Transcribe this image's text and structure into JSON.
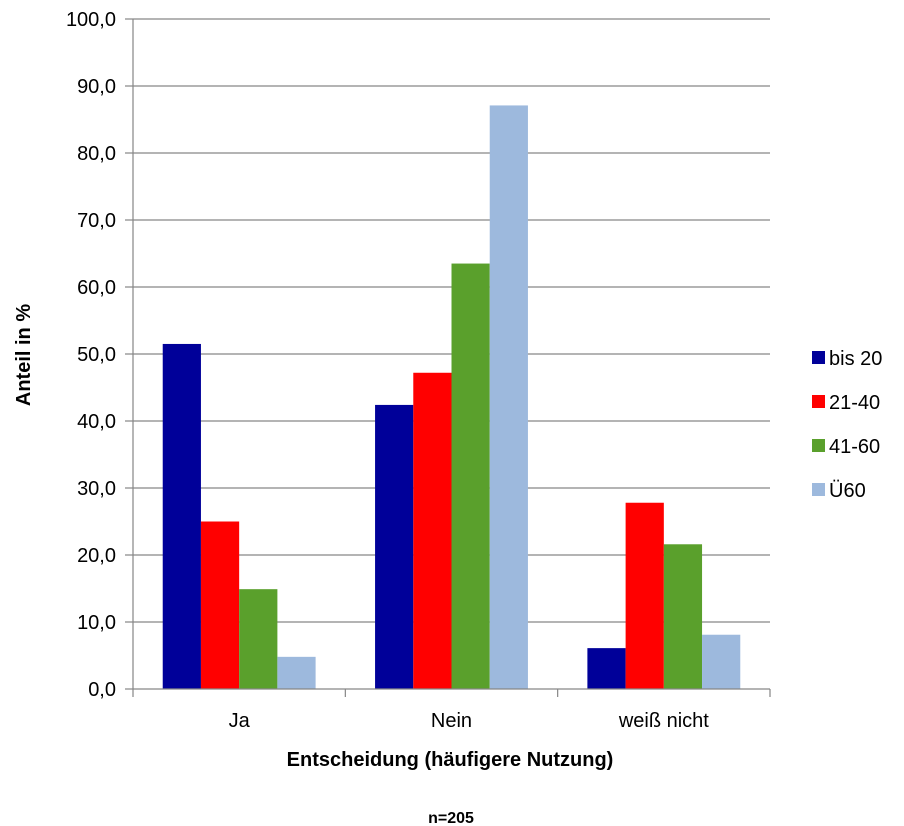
{
  "chart_data": {
    "type": "bar",
    "title": "",
    "xlabel": "Entscheidung (häufigere Nutzung)",
    "ylabel": "Anteil in %",
    "note": "n=205",
    "categories": [
      "Ja",
      "Nein",
      "weiß nicht"
    ],
    "ylim": [
      0,
      100
    ],
    "yticks": [
      "0,0",
      "10,0",
      "20,0",
      "30,0",
      "40,0",
      "50,0",
      "60,0",
      "70,0",
      "80,0",
      "90,0",
      "100,0"
    ],
    "grid": true,
    "legend_position": "right",
    "series": [
      {
        "name": "bis 20",
        "color": "#000099",
        "values": [
          51.5,
          42.4,
          6.1
        ]
      },
      {
        "name": "21-40",
        "color": "#FF0000",
        "values": [
          25.0,
          47.2,
          27.8
        ]
      },
      {
        "name": "41-60",
        "color": "#5AA02C",
        "values": [
          14.9,
          63.5,
          21.6
        ]
      },
      {
        "name": "Ü60",
        "color": "#9DB9DD",
        "values": [
          4.8,
          87.1,
          8.1
        ]
      }
    ]
  }
}
